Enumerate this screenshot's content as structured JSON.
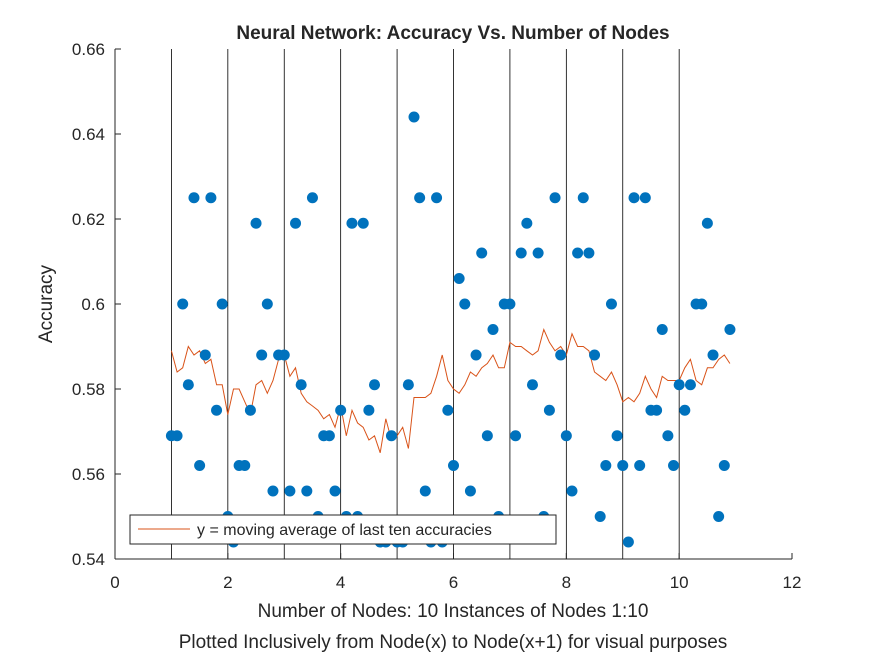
{
  "chart_data": {
    "type": "scatter",
    "title": "Neural Network: Accuracy Vs. Number of Nodes",
    "xlabel": "Number of Nodes: 10 Instances of Nodes 1:10",
    "xlabel2": "Plotted Inclusively from Node(x) to Node(x+1) for visual purposes",
    "ylabel": "Accuracy",
    "xlim": [
      0,
      12
    ],
    "ylim": [
      0.54,
      0.66
    ],
    "xticks": [
      0,
      2,
      4,
      6,
      8,
      10,
      12
    ],
    "xtick_labels": [
      "0",
      "2",
      "4",
      "6",
      "8",
      "10",
      "12"
    ],
    "yticks": [
      0.54,
      0.56,
      0.58,
      0.6,
      0.62,
      0.64,
      0.66
    ],
    "ytick_labels": [
      "0.54",
      "0.56",
      "0.58",
      "0.6",
      "0.62",
      "0.64",
      "0.66"
    ],
    "vertical_lines": [
      1,
      2,
      3,
      4,
      5,
      6,
      7,
      8,
      9,
      10
    ],
    "legend": {
      "position": "bottom-left",
      "entries": [
        "y = moving average of last ten accuracies"
      ]
    },
    "colors": {
      "scatter": "#0072BD",
      "line": "#D95319",
      "vlines": "#000000"
    },
    "series": [
      {
        "type": "scatter",
        "x": [
          1.0,
          1.1,
          1.2,
          1.3,
          1.4,
          1.5,
          1.6,
          1.7,
          1.8,
          1.9,
          2.0,
          2.1,
          2.2,
          2.3,
          2.4,
          2.5,
          2.6,
          2.7,
          2.8,
          2.9,
          3.0,
          3.1,
          3.2,
          3.3,
          3.4,
          3.5,
          3.6,
          3.7,
          3.8,
          3.9,
          4.0,
          4.1,
          4.2,
          4.3,
          4.4,
          4.5,
          4.6,
          4.7,
          4.8,
          4.9,
          5.0,
          5.1,
          5.2,
          5.3,
          5.4,
          5.5,
          5.6,
          5.7,
          5.8,
          5.9,
          6.0,
          6.1,
          6.2,
          6.3,
          6.4,
          6.5,
          6.6,
          6.7,
          6.8,
          6.9,
          7.0,
          7.1,
          7.2,
          7.3,
          7.4,
          7.5,
          7.6,
          7.7,
          7.8,
          7.9,
          8.0,
          8.1,
          8.2,
          8.3,
          8.4,
          8.5,
          8.6,
          8.7,
          8.8,
          8.9,
          9.0,
          9.1,
          9.2,
          9.3,
          9.4,
          9.5,
          9.6,
          9.7,
          9.8,
          9.9,
          10.0,
          10.1,
          10.2,
          10.3,
          10.4,
          10.5,
          10.6,
          10.7,
          10.8,
          10.9
        ],
        "y": [
          0.569,
          0.569,
          0.6,
          0.581,
          0.625,
          0.562,
          0.588,
          0.625,
          0.575,
          0.6,
          0.55,
          0.544,
          0.562,
          0.562,
          0.575,
          0.619,
          0.588,
          0.6,
          0.556,
          0.588,
          0.588,
          0.556,
          0.619,
          0.581,
          0.556,
          0.625,
          0.55,
          0.569,
          0.569,
          0.556,
          0.575,
          0.55,
          0.619,
          0.55,
          0.619,
          0.575,
          0.581,
          0.544,
          0.544,
          0.569,
          0.544,
          0.544,
          0.581,
          0.644,
          0.625,
          0.556,
          0.544,
          0.625,
          0.544,
          0.575,
          0.562,
          0.606,
          0.6,
          0.556,
          0.588,
          0.612,
          0.569,
          0.594,
          0.55,
          0.6,
          0.6,
          0.569,
          0.612,
          0.619,
          0.581,
          0.612,
          0.55,
          0.575,
          0.625,
          0.588,
          0.569,
          0.556,
          0.612,
          0.625,
          0.612,
          0.588,
          0.55,
          0.562,
          0.6,
          0.569,
          0.562,
          0.544,
          0.625,
          0.562,
          0.625,
          0.575,
          0.575,
          0.594,
          0.569,
          0.562,
          0.581,
          0.575,
          0.581,
          0.6,
          0.6,
          0.619,
          0.588,
          0.55,
          0.562,
          0.594
        ]
      },
      {
        "type": "line",
        "name": "y = moving average of last ten accuracies",
        "x": [
          1.0,
          1.1,
          1.2,
          1.3,
          1.4,
          1.5,
          1.6,
          1.7,
          1.8,
          1.9,
          2.0,
          2.1,
          2.2,
          2.3,
          2.4,
          2.5,
          2.6,
          2.7,
          2.8,
          2.9,
          3.0,
          3.1,
          3.2,
          3.3,
          3.4,
          3.5,
          3.6,
          3.7,
          3.8,
          3.9,
          4.0,
          4.1,
          4.2,
          4.3,
          4.4,
          4.5,
          4.6,
          4.7,
          4.8,
          4.9,
          5.0,
          5.1,
          5.2,
          5.3,
          5.4,
          5.5,
          5.6,
          5.7,
          5.8,
          5.9,
          6.0,
          6.1,
          6.2,
          6.3,
          6.4,
          6.5,
          6.6,
          6.7,
          6.8,
          6.9,
          7.0,
          7.1,
          7.2,
          7.3,
          7.4,
          7.5,
          7.6,
          7.7,
          7.8,
          7.9,
          8.0,
          8.1,
          8.2,
          8.3,
          8.4,
          8.5,
          8.6,
          8.7,
          8.8,
          8.9,
          9.0,
          9.1,
          9.2,
          9.3,
          9.4,
          9.5,
          9.6,
          9.7,
          9.8,
          9.9,
          10.0,
          10.1,
          10.2,
          10.3,
          10.4,
          10.5,
          10.6,
          10.7,
          10.8,
          10.9
        ],
        "y": [
          0.589,
          0.584,
          0.585,
          0.59,
          0.588,
          0.589,
          0.586,
          0.587,
          0.581,
          0.581,
          0.574,
          0.58,
          0.58,
          0.577,
          0.574,
          0.581,
          0.582,
          0.579,
          0.582,
          0.587,
          0.588,
          0.583,
          0.585,
          0.579,
          0.577,
          0.576,
          0.575,
          0.573,
          0.574,
          0.571,
          0.576,
          0.569,
          0.575,
          0.572,
          0.571,
          0.568,
          0.569,
          0.565,
          0.573,
          0.568,
          0.569,
          0.571,
          0.566,
          0.578,
          0.578,
          0.578,
          0.579,
          0.583,
          0.588,
          0.582,
          0.58,
          0.579,
          0.581,
          0.584,
          0.583,
          0.585,
          0.586,
          0.588,
          0.585,
          0.585,
          0.591,
          0.59,
          0.59,
          0.589,
          0.588,
          0.589,
          0.594,
          0.591,
          0.589,
          0.59,
          0.588,
          0.593,
          0.59,
          0.59,
          0.589,
          0.584,
          0.583,
          0.582,
          0.584,
          0.581,
          0.577,
          0.578,
          0.577,
          0.579,
          0.583,
          0.58,
          0.578,
          0.583,
          0.582,
          0.582,
          0.582,
          0.585,
          0.587,
          0.582,
          0.581,
          0.585,
          0.585,
          0.587,
          0.588,
          0.586
        ]
      }
    ]
  }
}
